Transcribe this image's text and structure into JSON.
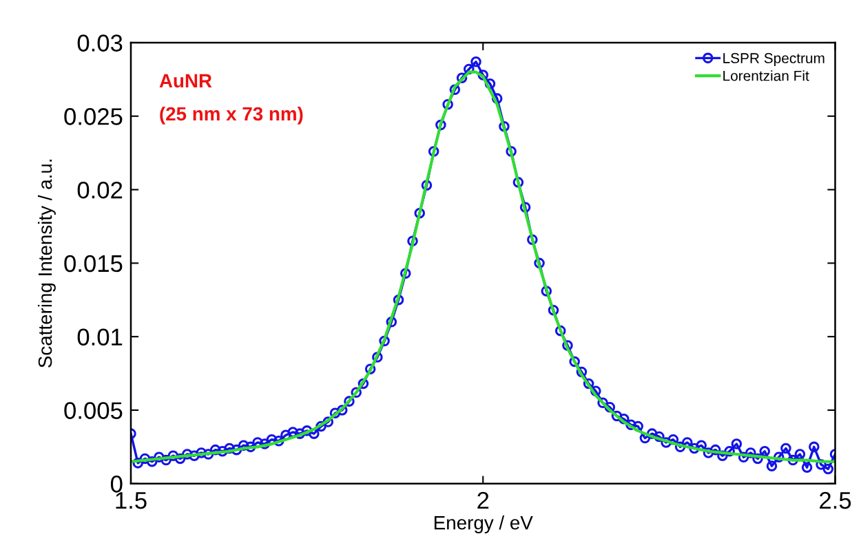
{
  "chart_data": {
    "type": "line",
    "xlabel": "Energy / eV",
    "ylabel": "Scattering Intensity / a.u.",
    "xlim": [
      1.5,
      2.5
    ],
    "xticks": [
      1.5,
      2,
      2.5
    ],
    "ylim": [
      0,
      0.03
    ],
    "yticks": [
      0,
      0.005,
      0.01,
      0.015,
      0.02,
      0.025,
      0.03
    ],
    "legend": "top right",
    "grid": false,
    "annotations": [
      "AuNR",
      "(25 nm x 73 nm)"
    ],
    "series": [
      {
        "name": "LSPR Spectrum",
        "color": "#1414e6",
        "marker": "circle",
        "x": [
          1.5,
          1.51,
          1.52,
          1.53,
          1.54,
          1.55,
          1.56,
          1.57,
          1.58,
          1.59,
          1.6,
          1.61,
          1.62,
          1.63,
          1.64,
          1.65,
          1.66,
          1.67,
          1.68,
          1.69,
          1.7,
          1.71,
          1.72,
          1.73,
          1.74,
          1.75,
          1.76,
          1.77,
          1.78,
          1.79,
          1.8,
          1.81,
          1.82,
          1.83,
          1.84,
          1.85,
          1.86,
          1.87,
          1.88,
          1.89,
          1.9,
          1.91,
          1.92,
          1.93,
          1.94,
          1.95,
          1.96,
          1.97,
          1.98,
          1.99,
          2.0,
          2.01,
          2.02,
          2.03,
          2.04,
          2.05,
          2.06,
          2.07,
          2.08,
          2.09,
          2.1,
          2.11,
          2.12,
          2.13,
          2.14,
          2.15,
          2.16,
          2.17,
          2.18,
          2.19,
          2.2,
          2.21,
          2.22,
          2.23,
          2.24,
          2.25,
          2.26,
          2.27,
          2.28,
          2.29,
          2.3,
          2.31,
          2.32,
          2.33,
          2.34,
          2.35,
          2.36,
          2.37,
          2.38,
          2.39,
          2.4,
          2.41,
          2.42,
          2.43,
          2.44,
          2.45,
          2.46,
          2.47,
          2.48,
          2.49,
          2.5
        ],
        "values": [
          0.0034,
          0.0014,
          0.0017,
          0.0015,
          0.0018,
          0.0016,
          0.0019,
          0.0017,
          0.002,
          0.0019,
          0.0021,
          0.002,
          0.0023,
          0.0022,
          0.0024,
          0.0023,
          0.0026,
          0.0025,
          0.0028,
          0.0027,
          0.003,
          0.0029,
          0.0033,
          0.0035,
          0.0034,
          0.0036,
          0.0034,
          0.0039,
          0.0042,
          0.0048,
          0.005,
          0.0056,
          0.0062,
          0.0068,
          0.0078,
          0.0086,
          0.0097,
          0.011,
          0.0125,
          0.0143,
          0.0165,
          0.0184,
          0.0203,
          0.0226,
          0.0244,
          0.0258,
          0.0268,
          0.0276,
          0.0282,
          0.0287,
          0.0278,
          0.0272,
          0.0262,
          0.0243,
          0.0226,
          0.0205,
          0.0188,
          0.0166,
          0.015,
          0.0131,
          0.0118,
          0.0104,
          0.0094,
          0.0083,
          0.0076,
          0.0068,
          0.0063,
          0.0055,
          0.0052,
          0.0046,
          0.0044,
          0.004,
          0.0039,
          0.0031,
          0.0034,
          0.0032,
          0.0028,
          0.003,
          0.0025,
          0.0028,
          0.0024,
          0.0026,
          0.0021,
          0.0023,
          0.0019,
          0.0022,
          0.0027,
          0.0018,
          0.0021,
          0.0017,
          0.0022,
          0.0012,
          0.0018,
          0.0024,
          0.0016,
          0.002,
          0.0011,
          0.0025,
          0.0013,
          0.001,
          0.002
        ]
      },
      {
        "name": "Lorentzian Fit",
        "color": "#33dd33",
        "marker": "none",
        "x": [
          1.5,
          1.52,
          1.54,
          1.56,
          1.58,
          1.6,
          1.62,
          1.64,
          1.66,
          1.68,
          1.7,
          1.72,
          1.74,
          1.76,
          1.78,
          1.8,
          1.82,
          1.84,
          1.86,
          1.88,
          1.9,
          1.92,
          1.94,
          1.96,
          1.98,
          1.99,
          2.0,
          2.02,
          2.04,
          2.06,
          2.08,
          2.1,
          2.12,
          2.14,
          2.16,
          2.18,
          2.2,
          2.22,
          2.24,
          2.26,
          2.28,
          2.3,
          2.32,
          2.34,
          2.36,
          2.38,
          2.4,
          2.42,
          2.44,
          2.46,
          2.48,
          2.5
        ],
        "values": [
          0.0015,
          0.0016,
          0.0017,
          0.0018,
          0.0019,
          0.002,
          0.0021,
          0.0022,
          0.0024,
          0.0025,
          0.0027,
          0.003,
          0.0033,
          0.0037,
          0.0043,
          0.0051,
          0.0062,
          0.0077,
          0.0098,
          0.0127,
          0.0163,
          0.0205,
          0.0245,
          0.027,
          0.028,
          0.028,
          0.0277,
          0.0258,
          0.0225,
          0.0185,
          0.0148,
          0.0117,
          0.0092,
          0.0074,
          0.006,
          0.005,
          0.0042,
          0.0036,
          0.0032,
          0.0029,
          0.0026,
          0.0024,
          0.0022,
          0.0021,
          0.002,
          0.0019,
          0.0018,
          0.0017,
          0.0016,
          0.0016,
          0.0015,
          0.0015
        ]
      }
    ]
  }
}
